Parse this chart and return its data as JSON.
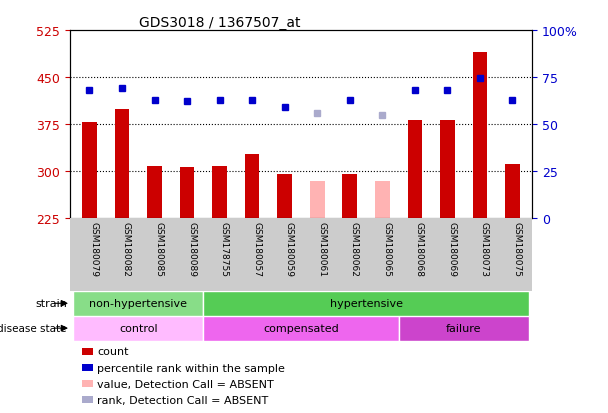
{
  "title": "GDS3018 / 1367507_at",
  "samples": [
    "GSM180079",
    "GSM180082",
    "GSM180085",
    "GSM180089",
    "GSM178755",
    "GSM180057",
    "GSM180059",
    "GSM180061",
    "GSM180062",
    "GSM180065",
    "GSM180068",
    "GSM180069",
    "GSM180073",
    "GSM180075"
  ],
  "count_values": [
    378,
    400,
    308,
    307,
    308,
    328,
    295,
    null,
    295,
    null,
    382,
    382,
    490,
    312
  ],
  "count_absent": [
    null,
    null,
    null,
    null,
    null,
    null,
    null,
    285,
    null,
    285,
    null,
    null,
    null,
    null
  ],
  "percentile_values": [
    430,
    432,
    413,
    412,
    413,
    414,
    402,
    null,
    413,
    null,
    430,
    430,
    448,
    413
  ],
  "percentile_absent": [
    null,
    null,
    null,
    null,
    null,
    null,
    null,
    393,
    null,
    390,
    null,
    null,
    null,
    null
  ],
  "ylim": [
    225,
    525
  ],
  "yticks": [
    225,
    300,
    375,
    450,
    525
  ],
  "y2lim": [
    0,
    100
  ],
  "y2ticks": [
    0,
    25,
    50,
    75,
    100
  ],
  "bar_color_present": "#cc0000",
  "bar_color_absent": "#ffb3b3",
  "dot_color_present": "#0000cc",
  "dot_color_absent": "#aaaacc",
  "bar_width": 0.45,
  "strain_groups": [
    {
      "label": "non-hypertensive",
      "start": 0,
      "end": 4,
      "color": "#88dd88"
    },
    {
      "label": "hypertensive",
      "start": 4,
      "end": 14,
      "color": "#55cc55"
    }
  ],
  "disease_groups": [
    {
      "label": "control",
      "start": 0,
      "end": 4,
      "color": "#ffbbff"
    },
    {
      "label": "compensated",
      "start": 4,
      "end": 10,
      "color": "#ee66ee"
    },
    {
      "label": "failure",
      "start": 10,
      "end": 14,
      "color": "#dd44cc"
    }
  ],
  "legend_items": [
    {
      "label": "count",
      "color": "#cc0000"
    },
    {
      "label": "percentile rank within the sample",
      "color": "#0000cc"
    },
    {
      "label": "value, Detection Call = ABSENT",
      "color": "#ffb3b3"
    },
    {
      "label": "rank, Detection Call = ABSENT",
      "color": "#aaaacc"
    }
  ],
  "ylabel_left_color": "#cc0000",
  "ylabel_right_color": "#0000cc",
  "background_xticklabels": "#cccccc",
  "strain_label": "strain",
  "disease_label": "disease state"
}
